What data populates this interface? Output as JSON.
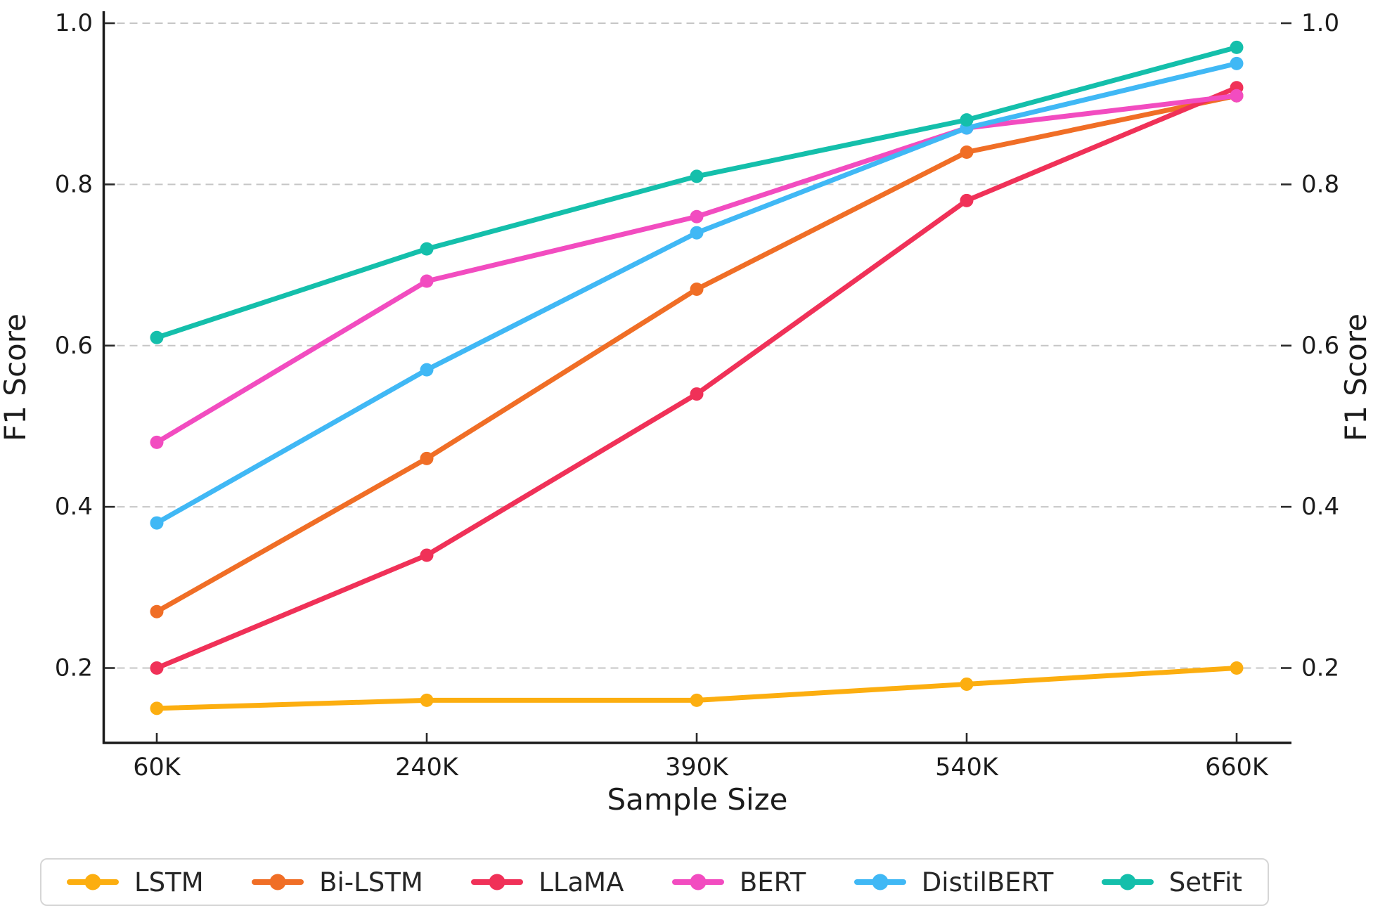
{
  "chart_data": {
    "type": "line",
    "title": "",
    "xlabel": "Sample Size",
    "ylabel_left": "F1 Score",
    "ylabel_right": "F1 Score",
    "categories": [
      "60K",
      "240K",
      "390K",
      "540K",
      "660K"
    ],
    "ytick_labels": [
      "1.0",
      "0.8",
      "0.6",
      "0.4",
      "0.2"
    ],
    "ylim": [
      0.107,
      1.016
    ],
    "grid": "horizontal-dashed",
    "grid_color": "#c6c6c6",
    "axis_color": "#1a1a1a",
    "tick_label_color": "#1c1c1c",
    "legend_position": "bottom",
    "series": [
      {
        "name": "LSTM",
        "color": "#FCAE10",
        "values": [
          0.15,
          0.16,
          0.16,
          0.18,
          0.2
        ]
      },
      {
        "name": "Bi-LSTM",
        "color": "#F06E26",
        "values": [
          0.27,
          0.46,
          0.67,
          0.84,
          0.91
        ]
      },
      {
        "name": "LLaMA",
        "color": "#F03158",
        "values": [
          0.2,
          0.34,
          0.54,
          0.78,
          0.92
        ]
      },
      {
        "name": "BERT",
        "color": "#F24CC0",
        "values": [
          0.48,
          0.68,
          0.76,
          0.87,
          0.91
        ]
      },
      {
        "name": "DistilBERT",
        "color": "#40B8F5",
        "values": [
          0.38,
          0.57,
          0.74,
          0.87,
          0.95
        ]
      },
      {
        "name": "SetFit",
        "color": "#14BFAB",
        "values": [
          0.61,
          0.72,
          0.81,
          0.88,
          0.97
        ]
      }
    ]
  }
}
